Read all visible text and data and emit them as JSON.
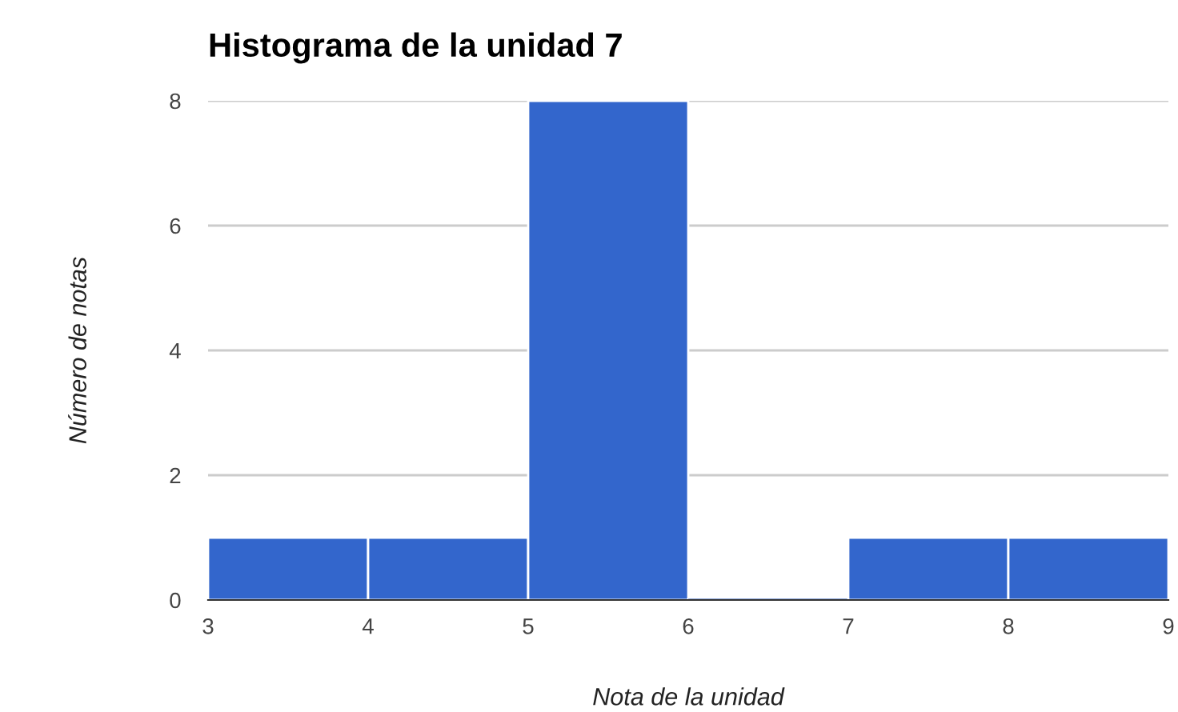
{
  "chart_data": {
    "type": "histogram",
    "title": "Histograma de la unidad 7",
    "xlabel": "Nota de la unidad",
    "ylabel": "Número de notas",
    "bins": [
      3,
      4,
      5,
      6,
      7,
      8,
      9
    ],
    "values": [
      1,
      1,
      8,
      0,
      1,
      1
    ],
    "color": "#3366cc",
    "xlim": [
      3,
      9
    ],
    "xticks": [
      3,
      4,
      5,
      6,
      7,
      8,
      9
    ],
    "ylim": [
      0,
      8
    ],
    "yticks": [
      0,
      2,
      4,
      6,
      8
    ],
    "grid": "y"
  }
}
